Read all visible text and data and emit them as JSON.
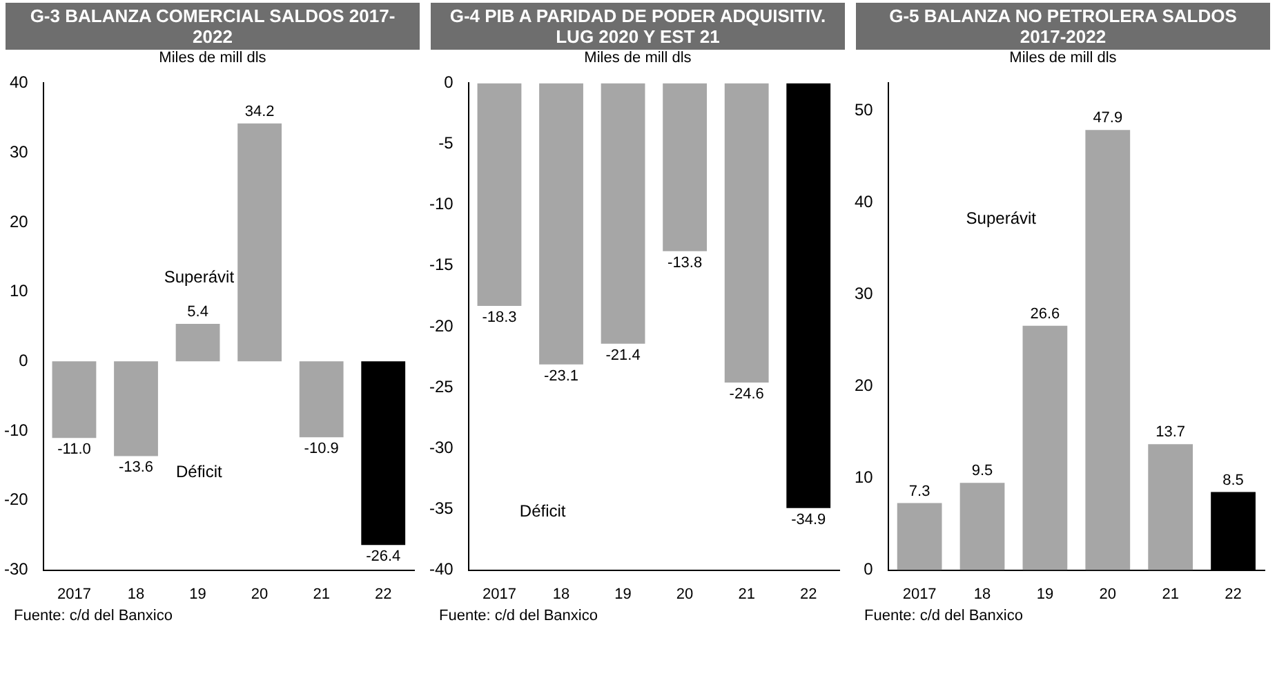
{
  "chart_data": [
    {
      "type": "bar",
      "title": "G-3  BALANZA COMERCIAL SALDOS 2017-2022",
      "subtitle": "Miles de mill dls",
      "categories": [
        "2017",
        "18",
        "19",
        "20",
        "21",
        "22"
      ],
      "values": [
        -11.0,
        -13.6,
        5.4,
        34.2,
        -10.9,
        -26.4
      ],
      "value_labels": [
        "-11.0",
        "-13.6",
        "5.4",
        "34.2",
        "-10.9",
        "-26.4"
      ],
      "colors": [
        "#a6a6a6",
        "#a6a6a6",
        "#a6a6a6",
        "#a6a6a6",
        "#a6a6a6",
        "#000000"
      ],
      "ylim": [
        -30,
        40
      ],
      "yticks": [
        -30,
        -20,
        -10,
        0,
        10,
        20,
        30,
        40
      ],
      "annotations": [
        "Superávit",
        "Déficit",
        "Fuente: c/d del Banxico"
      ]
    },
    {
      "type": "bar",
      "title": "G-4  PIB A PARIDAD DE PODER ADQUISITIV. LUG 2020 Y EST 21",
      "subtitle": "Miles de mill dls",
      "categories": [
        "2017",
        "18",
        "19",
        "20",
        "21",
        "22"
      ],
      "values": [
        -18.3,
        -23.1,
        -21.4,
        -13.8,
        -24.6,
        -34.9
      ],
      "value_labels": [
        "-18.3",
        "-23.1",
        "-21.4",
        "-13.8",
        "-24.6",
        "-34.9"
      ],
      "colors": [
        "#a6a6a6",
        "#a6a6a6",
        "#a6a6a6",
        "#a6a6a6",
        "#a6a6a6",
        "#000000"
      ],
      "ylim": [
        -40,
        0
      ],
      "yticks": [
        -40,
        -35,
        -30,
        -25,
        -20,
        -15,
        -10,
        -5,
        0
      ],
      "annotations": [
        "Déficit",
        "Fuente: c/d del Banxico"
      ]
    },
    {
      "type": "bar",
      "title": "G-5  BALANZA NO PETROLERA SALDOS 2017-2022",
      "subtitle": "Miles de mill dls",
      "categories": [
        "2017",
        "18",
        "19",
        "20",
        "21",
        "22"
      ],
      "values": [
        7.3,
        9.5,
        26.6,
        47.9,
        13.7,
        8.5
      ],
      "value_labels": [
        "7.3",
        "9.5",
        "26.6",
        "47.9",
        "13.7",
        "8.5"
      ],
      "colors": [
        "#a6a6a6",
        "#a6a6a6",
        "#a6a6a6",
        "#a6a6a6",
        "#a6a6a6",
        "#000000"
      ],
      "ylim": [
        0,
        53
      ],
      "yticks": [
        0,
        10,
        20,
        30,
        40,
        50
      ],
      "annotations": [
        "Superávit",
        "Fuente: c/d del Banxico"
      ]
    }
  ]
}
